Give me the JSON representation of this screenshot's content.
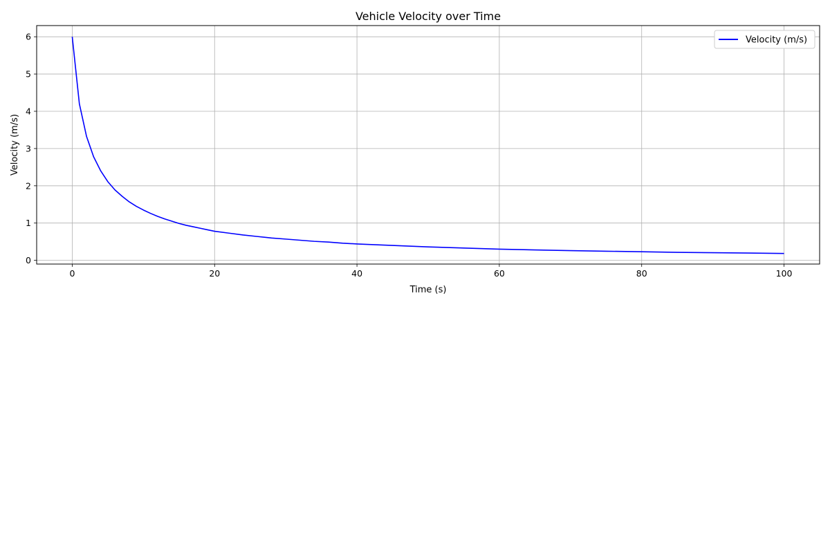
{
  "chart_data": {
    "type": "line",
    "title": "Vehicle Velocity over Time",
    "xlabel": "Time (s)",
    "ylabel": "Velocity (m/s)",
    "xlim": [
      -5,
      105
    ],
    "ylim": [
      -0.1,
      6.3
    ],
    "xticks": [
      0,
      20,
      40,
      60,
      80,
      100
    ],
    "yticks": [
      0,
      1,
      2,
      3,
      4,
      5,
      6
    ],
    "grid": true,
    "legend_position": "upper right",
    "series": [
      {
        "name": "Velocity (m/s)",
        "color": "#0000ff",
        "x": [
          0,
          1,
          2,
          3,
          4,
          5,
          6,
          7,
          8,
          9,
          10,
          11,
          12,
          13,
          14,
          15,
          16,
          17,
          18,
          19,
          20,
          22,
          24,
          26,
          28,
          30,
          32,
          34,
          36,
          38,
          40,
          45,
          50,
          55,
          60,
          65,
          70,
          75,
          80,
          85,
          90,
          95,
          100
        ],
        "y": [
          6.0,
          4.2,
          3.33,
          2.78,
          2.4,
          2.11,
          1.89,
          1.72,
          1.57,
          1.45,
          1.35,
          1.26,
          1.18,
          1.11,
          1.05,
          0.99,
          0.94,
          0.9,
          0.86,
          0.82,
          0.78,
          0.73,
          0.68,
          0.64,
          0.6,
          0.57,
          0.54,
          0.51,
          0.49,
          0.46,
          0.44,
          0.4,
          0.36,
          0.33,
          0.3,
          0.28,
          0.26,
          0.245,
          0.23,
          0.215,
          0.205,
          0.195,
          0.185
        ]
      }
    ]
  }
}
